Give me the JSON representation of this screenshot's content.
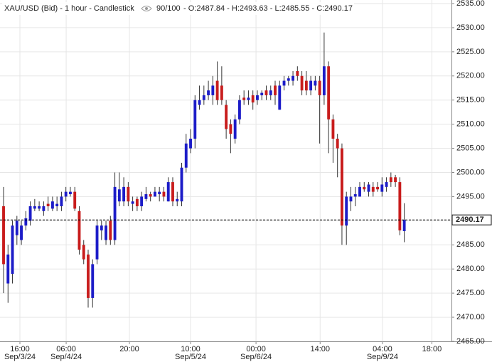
{
  "chart_data": {
    "type": "candlestick",
    "title": "XAU/USD (Bid) - 1 hour - Candlestick",
    "bars_shown": "90/100",
    "ohlc_prefixes": [
      "O:",
      "H:",
      "L:",
      "C:"
    ],
    "open": [
      2493,
      2477,
      2479,
      2487,
      2486,
      2489,
      2490,
      2492.5,
      2492.5,
      2492,
      2493.5,
      2492.5,
      2493,
      2493,
      2495,
      2495.5,
      2496,
      2492,
      2485,
      2483,
      2474,
      2482,
      2488,
      2486,
      2490,
      2486,
      2494,
      2494,
      2497,
      2493.5,
      2494.5,
      2493,
      2494.5,
      2495.5,
      2495,
      2495.5,
      2496,
      2494,
      2498,
      2494,
      2494,
      2501,
      2505,
      2507,
      2514,
      2515,
      2516,
      2516,
      2519,
      2518,
      2514,
      2510,
      2507,
      2511,
      2515.5,
      2515,
      2516,
      2515,
      2516,
      2517,
      2516,
      2518,
      2513,
      2518,
      2519,
      2519,
      2521,
      2520,
      2519,
      2517,
      2518,
      2519,
      2516,
      2522,
      2511,
      2507,
      2505,
      2489,
      2494,
      2495,
      2495,
      2497,
      2496,
      2497,
      2497,
      2496,
      2497,
      2499,
      2499,
      2498,
      2487.84
    ],
    "high": [
      2497,
      2485,
      2490,
      2491,
      2490,
      2492,
      2494,
      2494.5,
      2494,
      2494,
      2495,
      2495,
      2495,
      2496,
      2497,
      2497,
      2497,
      2493,
      2486,
      2484,
      2482,
      2490,
      2490,
      2490,
      2491,
      2500,
      2500,
      2499,
      2498,
      2495,
      2495,
      2496,
      2497,
      2496,
      2497,
      2497,
      2497,
      2499,
      2499,
      2496,
      2502,
      2508,
      2509,
      2516,
      2518,
      2518,
      2519,
      2520,
      2523,
      2522,
      2515,
      2511,
      2512,
      2516,
      2517,
      2517,
      2517,
      2517,
      2517,
      2518,
      2518,
      2519,
      2519,
      2520,
      2520,
      2521,
      2522,
      2521,
      2521,
      2520,
      2520,
      2520,
      2529,
      2523,
      2512,
      2508,
      2506,
      2496,
      2497,
      2497,
      2498,
      2498,
      2498,
      2498,
      2498,
      2499,
      2499,
      2500,
      2499.5,
      2499,
      2493.63
    ],
    "low": [
      2475,
      2473,
      2477,
      2485,
      2485,
      2488,
      2489,
      2492,
      2492,
      2491,
      2492,
      2492,
      2492,
      2492,
      2494,
      2495,
      2492,
      2483,
      2481,
      2472,
      2472,
      2481,
      2486,
      2485,
      2485,
      2485,
      2493,
      2493,
      2493,
      2492,
      2492,
      2492,
      2494,
      2494,
      2495,
      2494,
      2494,
      2494,
      2493,
      2493,
      2493,
      2500,
      2504,
      2505,
      2513,
      2514,
      2515,
      2514,
      2514,
      2514,
      2507,
      2504,
      2506,
      2510,
      2514,
      2514,
      2513,
      2514,
      2515,
      2515,
      2515,
      2514,
      2513,
      2517,
      2518,
      2518,
      2519,
      2516,
      2516,
      2516,
      2517,
      2506,
      2514,
      2504,
      2502,
      2499,
      2485,
      2485,
      2492,
      2493,
      2495,
      2496,
      2495,
      2495,
      2496,
      2495,
      2496,
      2497,
      2497,
      2487,
      2485.55
    ],
    "close": [
      2481,
      2483,
      2489,
      2490,
      2489,
      2490.5,
      2493,
      2493,
      2493,
      2493,
      2493,
      2494,
      2493.5,
      2495,
      2496,
      2496,
      2492.5,
      2484,
      2482,
      2474,
      2481,
      2489,
      2489,
      2489,
      2486,
      2497,
      2496.5,
      2497,
      2494,
      2494,
      2493,
      2495,
      2495.5,
      2495,
      2496,
      2496,
      2495,
      2498,
      2494,
      2494.5,
      2501,
      2506,
      2507,
      2515,
      2515,
      2516,
      2517,
      2518,
      2515,
      2515,
      2509,
      2508,
      2511,
      2515,
      2515,
      2515.5,
      2514.5,
      2516,
      2516.5,
      2516,
      2517,
      2516,
      2518,
      2519,
      2519.5,
      2520,
      2520,
      2517,
      2517,
      2519,
      2519,
      2516,
      2522,
      2511,
      2507,
      2505,
      2489,
      2495,
      2495,
      2495.5,
      2497,
      2496.5,
      2497.5,
      2496,
      2496.5,
      2497.5,
      2498,
      2498,
      2498,
      2488,
      2490.17
    ],
    "up_color": "#1c1cc8",
    "down_color": "#c81c1c",
    "xlim": [
      -0.8,
      100.6
    ],
    "xticks": [
      {
        "value": 3.67,
        "label": "16:00"
      },
      {
        "value": 14.06,
        "label": "06:00"
      },
      {
        "value": 28.27,
        "label": "20:00"
      },
      {
        "value": 42.0,
        "label": "10:00"
      },
      {
        "value": 56.7,
        "label": "00:00"
      },
      {
        "value": 71.1,
        "label": "14:00"
      },
      {
        "value": 85.1,
        "label": "04:00"
      },
      {
        "value": 96.2,
        "label": "18:00"
      }
    ],
    "date_labels": [
      {
        "value": 3.67,
        "label": "Sep/3/24"
      },
      {
        "value": 14.06,
        "label": "Sep/4/24"
      },
      {
        "value": 42.0,
        "label": "Sep/5/24"
      },
      {
        "value": 56.7,
        "label": "Sep/6/24"
      },
      {
        "value": 85.1,
        "label": "Sep/9/24"
      }
    ],
    "ylim": [
      2465,
      2535
    ],
    "yticks": [
      {
        "value": 2465,
        "label": "2465.00"
      },
      {
        "value": 2470,
        "label": "2470.00"
      },
      {
        "value": 2475,
        "label": "2475.00"
      },
      {
        "value": 2480,
        "label": "2480.00"
      },
      {
        "value": 2485,
        "label": "2485.00"
      },
      {
        "value": 2490,
        "label": "2490.00"
      },
      {
        "value": 2495,
        "label": "2495.00"
      },
      {
        "value": 2500,
        "label": "2500.00"
      },
      {
        "value": 2505,
        "label": "2505.00"
      },
      {
        "value": 2510,
        "label": "2510.00"
      },
      {
        "value": 2515,
        "label": "2515.00"
      },
      {
        "value": 2520,
        "label": "2520.00"
      },
      {
        "value": 2525,
        "label": "2525.00"
      },
      {
        "value": 2530,
        "label": "2530.00"
      },
      {
        "value": 2535,
        "label": "2535.00"
      }
    ],
    "grid": true
  }
}
